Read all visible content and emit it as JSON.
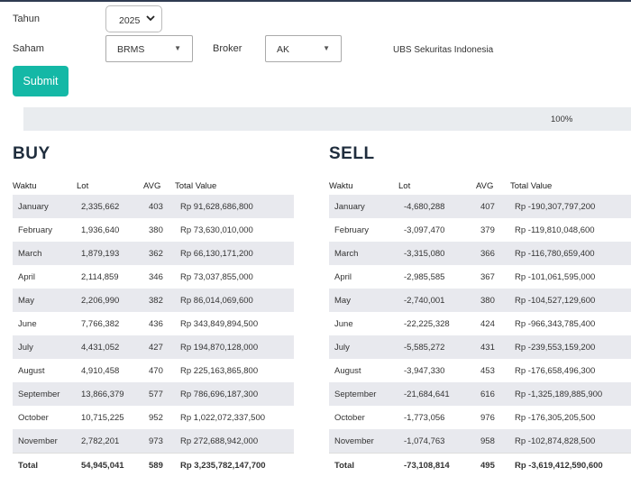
{
  "form": {
    "tahun_label": "Tahun",
    "tahun_value": "2025",
    "saham_label": "Saham",
    "saham_value": "BRMS",
    "broker_label": "Broker",
    "broker_value": "AK",
    "broker_name": "UBS Sekuritas Indonesia",
    "submit_label": "Submit"
  },
  "progress": {
    "value": 100,
    "label": "100%",
    "fill_color": "#e9ecef"
  },
  "colors": {
    "accent": "#14b8a6",
    "row_stripe": "#e8e9ee",
    "heading": "#1f2d3d"
  },
  "buy": {
    "title": "BUY",
    "headers": {
      "waktu": "Waktu",
      "lot": "Lot",
      "avg": "AVG",
      "total": "Total Value"
    },
    "rows": [
      {
        "waktu": "January",
        "lot": "2,335,662",
        "avg": "403",
        "total": "Rp 91,628,686,800"
      },
      {
        "waktu": "February",
        "lot": "1,936,640",
        "avg": "380",
        "total": "Rp 73,630,010,000"
      },
      {
        "waktu": "March",
        "lot": "1,879,193",
        "avg": "362",
        "total": "Rp 66,130,171,200"
      },
      {
        "waktu": "April",
        "lot": "2,114,859",
        "avg": "346",
        "total": "Rp 73,037,855,000"
      },
      {
        "waktu": "May",
        "lot": "2,206,990",
        "avg": "382",
        "total": "Rp 86,014,069,600"
      },
      {
        "waktu": "June",
        "lot": "7,766,382",
        "avg": "436",
        "total": "Rp 343,849,894,500"
      },
      {
        "waktu": "July",
        "lot": "4,431,052",
        "avg": "427",
        "total": "Rp 194,870,128,000"
      },
      {
        "waktu": "August",
        "lot": "4,910,458",
        "avg": "470",
        "total": "Rp 225,163,865,800"
      },
      {
        "waktu": "September",
        "lot": "13,866,379",
        "avg": "577",
        "total": "Rp 786,696,187,300"
      },
      {
        "waktu": "October",
        "lot": "10,715,225",
        "avg": "952",
        "total": "Rp 1,022,072,337,500"
      },
      {
        "waktu": "November",
        "lot": "2,782,201",
        "avg": "973",
        "total": "Rp 272,688,942,000"
      }
    ],
    "total": {
      "waktu": "Total",
      "lot": "54,945,041",
      "avg": "589",
      "total": "Rp 3,235,782,147,700"
    }
  },
  "sell": {
    "title": "SELL",
    "headers": {
      "waktu": "Waktu",
      "lot": "Lot",
      "avg": "AVG",
      "total": "Total Value"
    },
    "rows": [
      {
        "waktu": "January",
        "lot": "-4,680,288",
        "avg": "407",
        "total": "Rp -190,307,797,200"
      },
      {
        "waktu": "February",
        "lot": "-3,097,470",
        "avg": "379",
        "total": "Rp -119,810,048,600"
      },
      {
        "waktu": "March",
        "lot": "-3,315,080",
        "avg": "366",
        "total": "Rp -116,780,659,400"
      },
      {
        "waktu": "April",
        "lot": "-2,985,585",
        "avg": "367",
        "total": "Rp -101,061,595,000"
      },
      {
        "waktu": "May",
        "lot": "-2,740,001",
        "avg": "380",
        "total": "Rp -104,527,129,600"
      },
      {
        "waktu": "June",
        "lot": "-22,225,328",
        "avg": "424",
        "total": "Rp -966,343,785,400"
      },
      {
        "waktu": "July",
        "lot": "-5,585,272",
        "avg": "431",
        "total": "Rp -239,553,159,200"
      },
      {
        "waktu": "August",
        "lot": "-3,947,330",
        "avg": "453",
        "total": "Rp -176,658,496,300"
      },
      {
        "waktu": "September",
        "lot": "-21,684,641",
        "avg": "616",
        "total": "Rp -1,325,189,885,900"
      },
      {
        "waktu": "October",
        "lot": "-1,773,056",
        "avg": "976",
        "total": "Rp -176,305,205,500"
      },
      {
        "waktu": "November",
        "lot": "-1,074,763",
        "avg": "958",
        "total": "Rp -102,874,828,500"
      }
    ],
    "total": {
      "waktu": "Total",
      "lot": "-73,108,814",
      "avg": "495",
      "total": "Rp -3,619,412,590,600"
    }
  }
}
